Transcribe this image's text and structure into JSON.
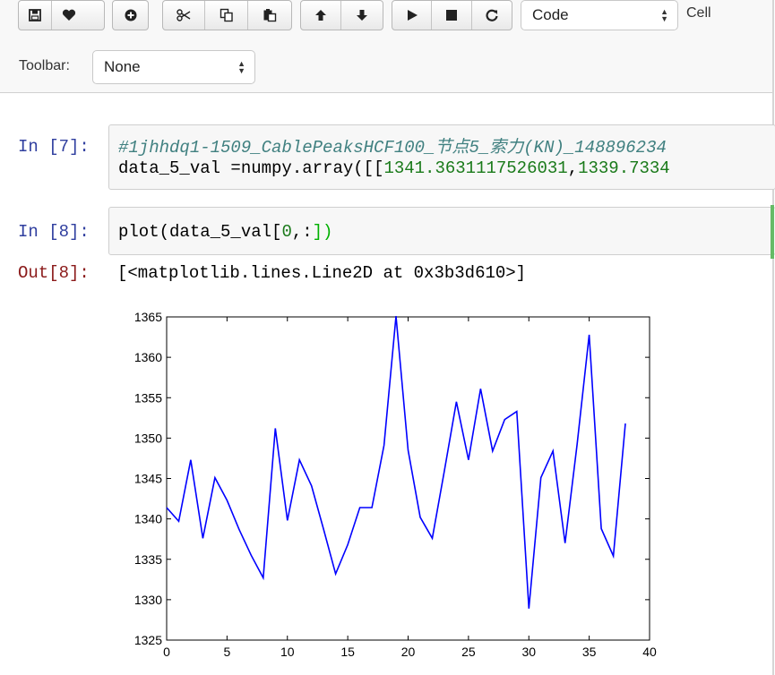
{
  "toolbar": {
    "buttons": [
      {
        "name": "save-icon",
        "glyph": "floppy"
      },
      {
        "name": "heart-icon",
        "glyph": "heart"
      },
      {
        "name": "plus-icon",
        "glyph": "plus"
      },
      {
        "name": "cut-icon",
        "glyph": "scissors"
      },
      {
        "name": "copy-icon",
        "glyph": "copy"
      },
      {
        "name": "paste-icon",
        "glyph": "paste"
      },
      {
        "name": "move-up-icon",
        "glyph": "arrow-up"
      },
      {
        "name": "move-down-icon",
        "glyph": "arrow-down"
      },
      {
        "name": "run-icon",
        "glyph": "play"
      },
      {
        "name": "stop-icon",
        "glyph": "stop"
      },
      {
        "name": "restart-icon",
        "glyph": "refresh"
      }
    ],
    "cell_type_value": "Code",
    "cell_label": "Cell",
    "toolbar_label": "Toolbar:",
    "toolbar_value": "None"
  },
  "cells": [
    {
      "prompt": "In [7]:",
      "line1": "#1jhhdq1-1509_CablePeaksHCF100_节点5_索力(KN)_148896234",
      "line2_prefix": "data_5_val =numpy.array([[",
      "line2_num1": "1341.3631117526031",
      "line2_comma": ",",
      "line2_num2": "1339.7334"
    },
    {
      "prompt": "In [8]:",
      "code_prefix": "plot(data_5_val[",
      "code_num": "0",
      "code_mid": ",:",
      "code_suffix": "])",
      "out_prompt": "Out[8]:",
      "out_text": "[<matplotlib.lines.Line2D at 0x3b3d610>]"
    }
  ],
  "chart_data": {
    "type": "line",
    "title": "",
    "xlabel": "",
    "ylabel": "",
    "xlim": [
      0,
      40
    ],
    "ylim": [
      1325,
      1365
    ],
    "xticks": [
      0,
      5,
      10,
      15,
      20,
      25,
      30,
      35,
      40
    ],
    "yticks": [
      1325,
      1330,
      1335,
      1340,
      1345,
      1350,
      1355,
      1360,
      1365
    ],
    "line_color": "#0000ff",
    "series": [
      {
        "x": [
          0,
          1,
          2,
          3,
          4,
          5,
          6,
          7,
          8,
          9,
          10,
          11,
          12,
          13,
          14,
          15,
          16,
          17,
          18,
          19,
          20,
          21,
          22,
          23,
          24,
          25,
          26,
          27,
          28,
          29,
          30,
          31,
          32,
          33,
          34,
          35,
          36,
          37,
          38
        ],
        "y": [
          1341.4,
          1339.7,
          1347.3,
          1337.6,
          1345.1,
          1342.3,
          1338.7,
          1335.5,
          1332.7,
          1351.2,
          1339.8,
          1347.3,
          1344.1,
          1338.7,
          1333.2,
          1336.8,
          1341.4,
          1341.4,
          1349.1,
          1365.1,
          1348.5,
          1340.2,
          1337.6,
          1345.9,
          1354.5,
          1347.3,
          1356.1,
          1348.4,
          1352.3,
          1353.3,
          1328.9,
          1345.1,
          1348.4,
          1337.0,
          1349.2,
          1362.8,
          1338.8,
          1335.4,
          1351.8
        ]
      }
    ]
  }
}
